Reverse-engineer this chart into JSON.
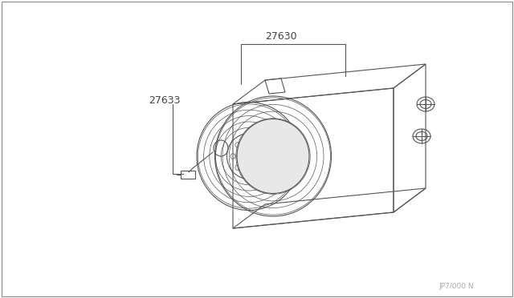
{
  "title": "",
  "background_color": "#ffffff",
  "border_color": "#cccccc",
  "line_color": "#555555",
  "text_color": "#444444",
  "label_27630": "27630",
  "label_27633": "27633",
  "watermark": "JP7/000 N",
  "fig_width": 6.4,
  "fig_height": 3.72,
  "dpi": 100
}
